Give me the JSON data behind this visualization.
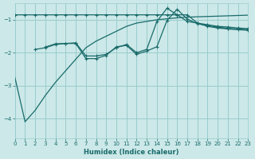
{
  "xlabel": "Humidex (Indice chaleur)",
  "bg_color": "#cce8e8",
  "line_color": "#1a6b6b",
  "grid_color": "#99cccc",
  "xlim": [
    0,
    23
  ],
  "ylim": [
    -4.6,
    -0.5
  ],
  "yticks": [
    -4,
    -3,
    -2,
    -1
  ],
  "xticks": [
    0,
    1,
    2,
    3,
    4,
    5,
    6,
    7,
    8,
    9,
    10,
    11,
    12,
    13,
    14,
    15,
    16,
    17,
    18,
    19,
    20,
    21,
    22,
    23
  ],
  "series1_x": [
    0,
    1,
    2,
    3,
    4,
    5,
    6,
    7,
    8,
    9,
    10,
    11,
    12,
    13,
    14,
    15,
    16,
    17,
    18,
    19,
    20,
    21,
    22,
    23
  ],
  "series1_y": [
    -2.75,
    -4.1,
    -3.75,
    -3.3,
    -2.9,
    -2.55,
    -2.2,
    -1.85,
    -1.65,
    -1.5,
    -1.35,
    -1.2,
    -1.1,
    -1.05,
    -1.0,
    -0.97,
    -0.94,
    -0.92,
    -0.91,
    -0.9,
    -0.89,
    -0.88,
    -0.87,
    -0.86
  ],
  "series2_x": [
    0,
    1,
    2,
    3,
    4,
    5,
    6,
    7,
    8,
    9,
    10,
    11,
    12,
    13,
    14,
    15,
    16,
    17,
    18,
    19,
    20,
    21,
    22,
    23
  ],
  "series2_y": [
    -0.85,
    -0.85,
    -0.85,
    -0.85,
    -0.85,
    -0.85,
    -0.85,
    -0.85,
    -0.85,
    -0.85,
    -0.85,
    -0.85,
    -0.85,
    -0.85,
    -0.85,
    -0.85,
    -0.85,
    -0.85,
    -1.1,
    -1.2,
    -1.25,
    -1.28,
    -1.3,
    -1.32
  ],
  "series3_x": [
    2,
    3,
    4,
    5,
    6,
    7,
    8,
    9,
    10,
    11,
    12,
    13,
    14,
    15,
    16,
    17,
    18,
    19,
    20,
    21,
    22,
    23
  ],
  "series3_y": [
    -1.9,
    -1.85,
    -1.75,
    -1.72,
    -1.7,
    -2.1,
    -2.1,
    -2.05,
    -1.85,
    -1.75,
    -2.0,
    -1.9,
    -1.05,
    -0.65,
    -0.85,
    -1.05,
    -1.1,
    -1.15,
    -1.2,
    -1.22,
    -1.25,
    -1.27
  ],
  "series4_x": [
    3,
    4,
    5,
    6,
    7,
    8,
    9,
    10,
    11,
    12,
    13,
    14,
    15,
    16,
    17,
    18,
    19,
    20,
    21,
    22,
    23
  ],
  "series4_y": [
    -1.83,
    -1.73,
    -1.72,
    -1.72,
    -2.18,
    -2.18,
    -2.08,
    -1.82,
    -1.78,
    -2.05,
    -1.95,
    -1.82,
    -1.02,
    -0.68,
    -0.98,
    -1.12,
    -1.18,
    -1.22,
    -1.26,
    -1.28,
    -1.3
  ]
}
